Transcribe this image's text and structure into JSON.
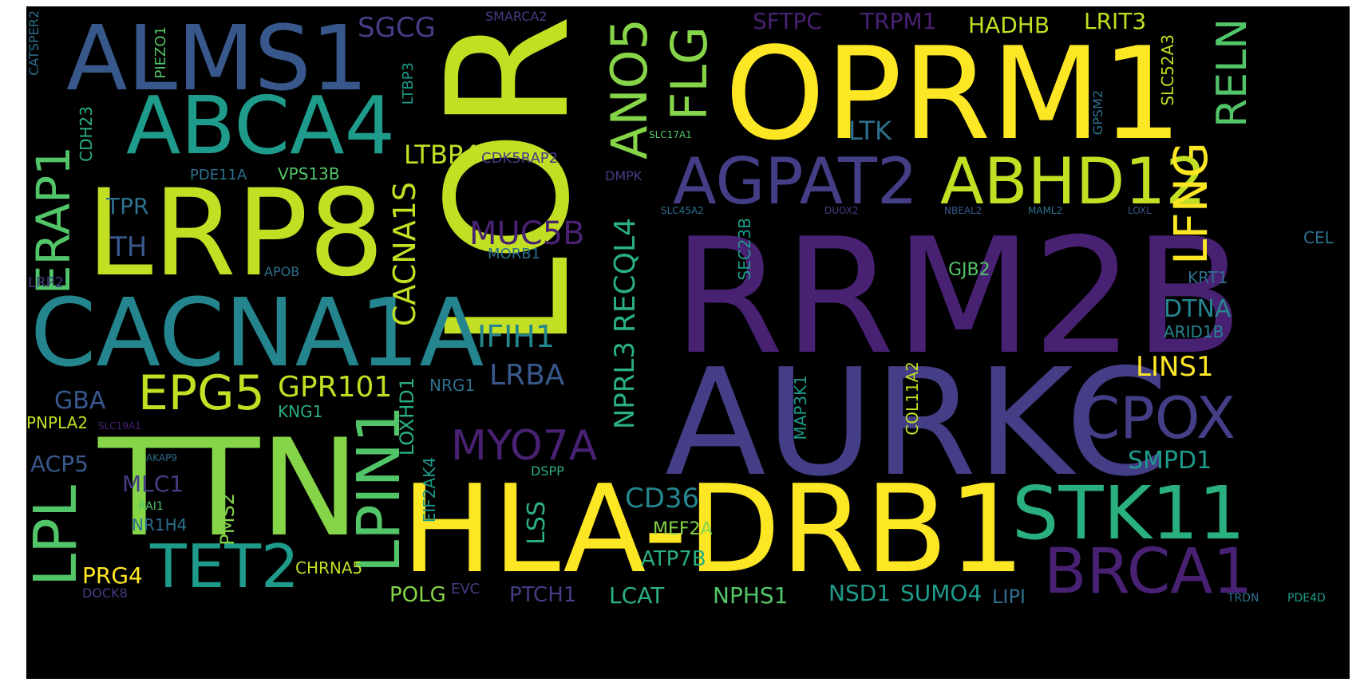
{
  "colors": {
    "background": "#000000",
    "page": "#ffffff",
    "palette": [
      "#fde725",
      "#c2df23",
      "#86d549",
      "#52c569",
      "#2ab07f",
      "#1e9b8a",
      "#25858e",
      "#2d708e",
      "#38588c",
      "#433e85",
      "#482173",
      "#440154"
    ]
  },
  "words": [
    {
      "text": "LOR",
      "color": "#c2df23",
      "vertical": true
    },
    {
      "text": "RRM2B",
      "color": "#482173"
    },
    {
      "text": "AURKC",
      "color": "#433e85"
    },
    {
      "text": "OPRM1",
      "color": "#fde725"
    },
    {
      "text": "HLA-DRB1",
      "color": "#fde725"
    },
    {
      "text": "TTN",
      "color": "#86d549"
    },
    {
      "text": "CACNA1A",
      "color": "#25858e"
    },
    {
      "text": "LRP8",
      "color": "#c2df23"
    },
    {
      "text": "ALMS1",
      "color": "#38588c"
    },
    {
      "text": "ABCA4",
      "color": "#1e9b8a"
    },
    {
      "text": "AGPAT2",
      "color": "#433e85"
    },
    {
      "text": "ABHD12",
      "color": "#c2df23"
    },
    {
      "text": "STK11",
      "color": "#2ab07f"
    },
    {
      "text": "BRCA1",
      "color": "#482173"
    },
    {
      "text": "CPOX",
      "color": "#433e85"
    },
    {
      "text": "TET2",
      "color": "#1e9b8a"
    },
    {
      "text": "EPG5",
      "color": "#c2df23"
    },
    {
      "text": "LPIN1",
      "color": "#52c569",
      "vertical": true
    },
    {
      "text": "LPL",
      "color": "#52c569",
      "vertical": true
    },
    {
      "text": "ERAP1",
      "color": "#52c569",
      "vertical": true
    },
    {
      "text": "ANO5",
      "color": "#86d549",
      "vertical": true
    },
    {
      "text": "FLG",
      "color": "#86d549",
      "vertical": true
    },
    {
      "text": "RELN",
      "color": "#52c569",
      "vertical": true
    },
    {
      "text": "LFNG",
      "color": "#fde725",
      "vertical": true
    },
    {
      "text": "MYO7A",
      "color": "#482173"
    },
    {
      "text": "CACNA1S",
      "color": "#c2df23",
      "vertical": true
    },
    {
      "text": "RECQL4",
      "color": "#2ab07f",
      "vertical": true
    },
    {
      "text": "NPRL3",
      "color": "#2ab07f",
      "vertical": true
    },
    {
      "text": "GPR101",
      "color": "#c2df23"
    },
    {
      "text": "IFIH1",
      "color": "#25858e"
    },
    {
      "text": "LRBA",
      "color": "#38588c"
    },
    {
      "text": "MUC5B",
      "color": "#482173"
    },
    {
      "text": "CD36",
      "color": "#25858e"
    },
    {
      "text": "SGCG",
      "color": "#433e85"
    },
    {
      "text": "SFTPC",
      "color": "#482173"
    },
    {
      "text": "TRPM1",
      "color": "#482173"
    },
    {
      "text": "HADHB",
      "color": "#c2df23"
    },
    {
      "text": "LRIT3",
      "color": "#c2df23"
    },
    {
      "text": "SMPD1",
      "color": "#1e9b8a"
    },
    {
      "text": "LINS1",
      "color": "#fde725"
    },
    {
      "text": "DTNA",
      "color": "#25858e"
    },
    {
      "text": "LTK",
      "color": "#2d708e"
    },
    {
      "text": "LTBP4",
      "color": "#c2df23"
    },
    {
      "text": "TH",
      "color": "#38588c"
    },
    {
      "text": "TPR",
      "color": "#2d708e"
    },
    {
      "text": "GBA",
      "color": "#38588c"
    },
    {
      "text": "ACP5",
      "color": "#38588c"
    },
    {
      "text": "MLC1",
      "color": "#433e85"
    },
    {
      "text": "PRG4",
      "color": "#fde725"
    },
    {
      "text": "POLG",
      "color": "#86d549"
    },
    {
      "text": "PTCH1",
      "color": "#433e85"
    },
    {
      "text": "LCAT",
      "color": "#2ab07f"
    },
    {
      "text": "NPHS1",
      "color": "#52c569"
    },
    {
      "text": "NSD1",
      "color": "#1e9b8a"
    },
    {
      "text": "SUMO4",
      "color": "#1e9b8a"
    },
    {
      "text": "LIPI",
      "color": "#2d708e"
    },
    {
      "text": "ATP7B",
      "color": "#2ab07f"
    },
    {
      "text": "MEF2A",
      "color": "#86d549"
    },
    {
      "text": "LSS",
      "color": "#2ab07f",
      "vertical": true
    },
    {
      "text": "PMS2",
      "color": "#86d549",
      "vertical": true
    },
    {
      "text": "NR1H4",
      "color": "#2d708e"
    },
    {
      "text": "CHRNA5",
      "color": "#c2df23"
    },
    {
      "text": "PNPLA2",
      "color": "#c2df23"
    },
    {
      "text": "KNG1",
      "color": "#2ab07f"
    },
    {
      "text": "LOXHD1",
      "color": "#2ab07f",
      "vertical": true
    },
    {
      "text": "EIF2AK4",
      "color": "#1e9b8a",
      "vertical": true
    },
    {
      "text": "NRG1",
      "color": "#2d708e"
    },
    {
      "text": "GJB2",
      "color": "#52c569"
    },
    {
      "text": "COL11A2",
      "color": "#c2df23",
      "vertical": true
    },
    {
      "text": "MAP3K1",
      "color": "#1e9b8a",
      "vertical": true
    },
    {
      "text": "SEC23B",
      "color": "#1e9b8a",
      "vertical": true
    },
    {
      "text": "ARID1B",
      "color": "#25858e"
    },
    {
      "text": "KRT1",
      "color": "#2d708e"
    },
    {
      "text": "CEL",
      "color": "#2d708e"
    },
    {
      "text": "SLC52A3",
      "color": "#c2df23",
      "vertical": true
    },
    {
      "text": "GPSM2",
      "color": "#2d708e",
      "vertical": true
    },
    {
      "text": "PIEZO1",
      "color": "#52c569",
      "vertical": true
    },
    {
      "text": "CDH23",
      "color": "#2ab07f",
      "vertical": true
    },
    {
      "text": "CATSPER2",
      "color": "#2d708e",
      "vertical": true
    },
    {
      "text": "LTBP3",
      "color": "#1e9b8a",
      "vertical": true
    },
    {
      "text": "PDE11A",
      "color": "#2d708e"
    },
    {
      "text": "VPS13B",
      "color": "#52c569"
    },
    {
      "text": "CDK5RAP2",
      "color": "#433e85"
    },
    {
      "text": "DMPK",
      "color": "#433e85"
    },
    {
      "text": "SMARCA2",
      "color": "#433e85"
    },
    {
      "text": "MORB1",
      "color": "#2d708e"
    },
    {
      "text": "APOB",
      "color": "#2d708e"
    },
    {
      "text": "LRP2",
      "color": "#433e85"
    },
    {
      "text": "DSPP",
      "color": "#2ab07f"
    },
    {
      "text": "DOCK8",
      "color": "#433e85"
    },
    {
      "text": "EVC",
      "color": "#433e85"
    },
    {
      "text": "RAI1",
      "color": "#52c569"
    },
    {
      "text": "PDE4D",
      "color": "#1e9b8a"
    },
    {
      "text": "TRDN",
      "color": "#2d708e"
    },
    {
      "text": "SLC17A1",
      "color": "#52c569"
    },
    {
      "text": "SLC45A2",
      "color": "#2d708e"
    },
    {
      "text": "NBEAL2",
      "color": "#38588c"
    },
    {
      "text": "MAML2",
      "color": "#2d708e"
    },
    {
      "text": "LOXL",
      "color": "#38588c"
    },
    {
      "text": "SLC19A1",
      "color": "#482173"
    },
    {
      "text": "AKAP9",
      "color": "#2d708e"
    },
    {
      "text": "DUOX2",
      "color": "#433e85"
    }
  ]
}
